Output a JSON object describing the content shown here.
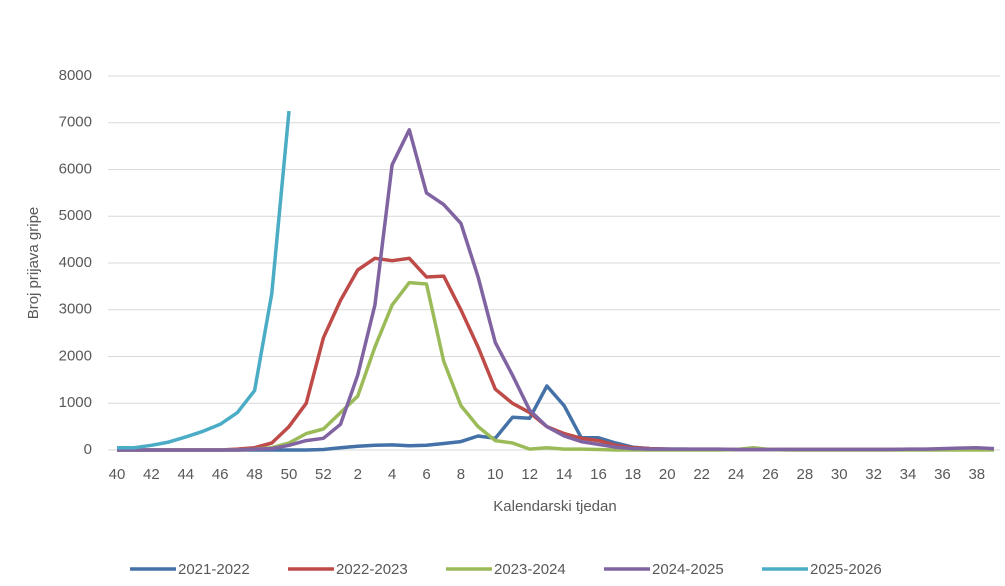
{
  "chart_data": {
    "type": "line",
    "x_label": "Kalendarski tjedan",
    "y_label": "Broj prijava gripe",
    "categories": [
      "40",
      null,
      "42",
      null,
      "44",
      null,
      "46",
      null,
      "48",
      null,
      "50",
      null,
      "52",
      null,
      "2",
      null,
      "4",
      null,
      "6",
      null,
      "8",
      null,
      "10",
      null,
      "12",
      null,
      "14",
      null,
      "16",
      null,
      "18",
      null,
      "20",
      null,
      "22",
      null,
      "24",
      null,
      "26",
      null,
      "28",
      null,
      "30",
      null,
      "32",
      null,
      "34",
      null,
      "36",
      null,
      "38",
      null
    ],
    "ylim": [
      0,
      8000
    ],
    "yticks": [
      0,
      1000,
      2000,
      3000,
      4000,
      5000,
      6000,
      7000,
      8000
    ],
    "grid": true,
    "legend": "bottom",
    "series": [
      {
        "name": "2021-2022",
        "color": "#4472a8",
        "values": [
          0,
          0,
          0,
          0,
          0,
          0,
          0,
          0,
          0,
          0,
          0,
          0,
          10,
          50,
          80,
          100,
          110,
          90,
          100,
          140,
          180,
          300,
          250,
          700,
          680,
          1370,
          950,
          260,
          260,
          150,
          60,
          30,
          20,
          20,
          10,
          10,
          10,
          10,
          10,
          10,
          10,
          10,
          10,
          10,
          10,
          10,
          10,
          10,
          10,
          10,
          10,
          10
        ]
      },
      {
        "name": "2022-2023",
        "color": "#be4b48",
        "values": [
          0,
          0,
          0,
          0,
          0,
          0,
          0,
          20,
          50,
          150,
          500,
          1000,
          2400,
          3200,
          3850,
          4100,
          4050,
          4100,
          3700,
          3720,
          3000,
          2200,
          1300,
          1000,
          800,
          500,
          350,
          250,
          200,
          100,
          50,
          30,
          20,
          10,
          10,
          10,
          10,
          10,
          10,
          10,
          10,
          10,
          10,
          10,
          10,
          10,
          10,
          10,
          10,
          10,
          10,
          10
        ]
      },
      {
        "name": "2023-2024",
        "color": "#9bbb59",
        "values": [
          0,
          0,
          0,
          0,
          0,
          0,
          0,
          0,
          20,
          50,
          150,
          350,
          450,
          800,
          1150,
          2200,
          3100,
          3580,
          3550,
          1900,
          950,
          500,
          200,
          150,
          20,
          50,
          20,
          20,
          10,
          0,
          0,
          0,
          0,
          0,
          0,
          0,
          10,
          50,
          10,
          0,
          0,
          0,
          0,
          0,
          0,
          0,
          0,
          0,
          0,
          0,
          0,
          0
        ]
      },
      {
        "name": "2024-2025",
        "color": "#8064a2",
        "values": [
          0,
          0,
          0,
          0,
          0,
          0,
          0,
          0,
          20,
          30,
          100,
          200,
          250,
          550,
          1600,
          3100,
          6100,
          6850,
          5500,
          5250,
          4850,
          3700,
          2300,
          1600,
          850,
          500,
          300,
          180,
          120,
          60,
          30,
          20,
          20,
          20,
          20,
          20,
          10,
          10,
          10,
          10,
          10,
          10,
          10,
          10,
          10,
          10,
          20,
          20,
          30,
          40,
          50,
          30
        ]
      },
      {
        "name": "2025-2026",
        "color": "#4bacc6",
        "values": [
          50,
          50,
          100,
          170,
          280,
          400,
          550,
          800,
          1270,
          3350,
          7250,
          null,
          null,
          null,
          null,
          null,
          null,
          null,
          null,
          null,
          null,
          null,
          null,
          null,
          null,
          null,
          null,
          null,
          null,
          null,
          null,
          null,
          null,
          null,
          null,
          null,
          null,
          null,
          null,
          null,
          null,
          null,
          null,
          null,
          null,
          null,
          null,
          null,
          null,
          null,
          null,
          null
        ]
      }
    ]
  }
}
